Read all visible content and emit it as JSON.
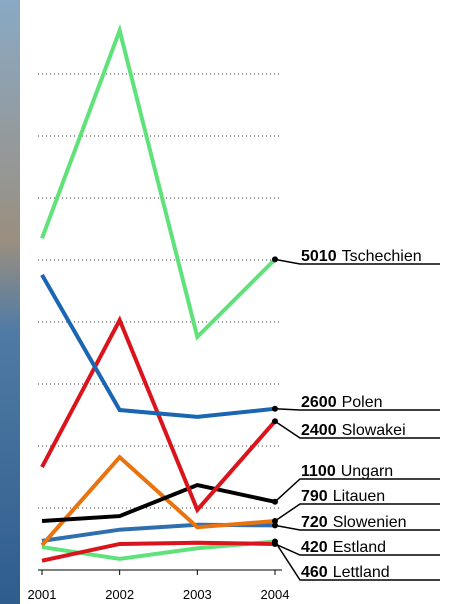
{
  "chart_data": {
    "type": "line",
    "categories": [
      "2001",
      "2002",
      "2003",
      "2004"
    ],
    "ylim": [
      0,
      9000
    ],
    "grid": [
      1000,
      2000,
      3000,
      4000,
      5000,
      6000,
      7000,
      8000
    ],
    "series": [
      {
        "name": "Tschechien",
        "color": "#5fe27a",
        "values": [
          5350,
          8700,
          3760,
          5010
        ]
      },
      {
        "name": "Polen",
        "color": "#1a66b3",
        "values": [
          4760,
          2580,
          2470,
          2600
        ]
      },
      {
        "name": "Slowakei",
        "color": "#d9141c",
        "values": [
          1660,
          4030,
          970,
          2400
        ]
      },
      {
        "name": "Ungarn",
        "color": "#000000",
        "values": [
          790,
          870,
          1370,
          1100
        ]
      },
      {
        "name": "Litauen",
        "color": "#e8730f",
        "values": [
          400,
          1820,
          690,
          790
        ]
      },
      {
        "name": "Slowenien",
        "color": "#2f6fae",
        "values": [
          470,
          650,
          730,
          720
        ]
      },
      {
        "name": "Estland",
        "color": "#d9141c",
        "values": [
          150,
          420,
          440,
          420
        ]
      },
      {
        "name": "Lettland",
        "color": "#5fe27a",
        "values": [
          370,
          180,
          350,
          460
        ]
      }
    ]
  }
}
